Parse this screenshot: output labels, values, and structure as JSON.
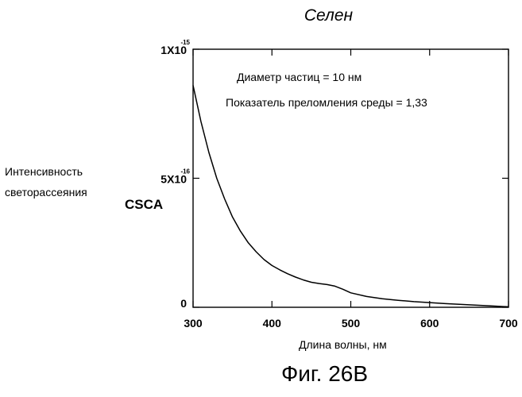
{
  "chart_data": {
    "type": "line",
    "title": "Селен",
    "xlabel": "Длина волны, нм",
    "ylabel_line1": "Интенсивность",
    "ylabel_line2": "светорассеяния",
    "ylabel_symbol": "CSCA",
    "xlim": [
      300,
      700
    ],
    "ylim": [
      0,
      1e-15
    ],
    "xticks": [
      "300",
      "400",
      "500",
      "600",
      "700"
    ],
    "yticks": [
      {
        "mantissa": "0",
        "exp": ""
      },
      {
        "mantissa": "5X10",
        "exp": "-16"
      },
      {
        "mantissa": "1X10",
        "exp": "-15"
      }
    ],
    "annotations": [
      "Диаметр частиц = 10 нм",
      "Показатель преломления среды = 1,33"
    ],
    "grid": false,
    "series": [
      {
        "x": [
          300,
          310,
          320,
          330,
          340,
          350,
          360,
          370,
          380,
          390,
          400,
          410,
          420,
          430,
          440,
          450,
          460,
          470,
          480,
          490,
          500,
          520,
          540,
          560,
          580,
          600,
          620,
          640,
          660,
          680,
          700
        ],
        "values": [
          8.6e-16,
          7.2e-16,
          6e-16,
          5e-16,
          4.2e-16,
          3.5e-16,
          2.95e-16,
          2.5e-16,
          2.15e-16,
          1.85e-16,
          1.62e-16,
          1.45e-16,
          1.3e-16,
          1.17e-16,
          1.06e-16,
          9.7e-17,
          9.2e-17,
          8.8e-17,
          8.2e-17,
          7e-17,
          5.6e-17,
          4.2e-17,
          3.3e-17,
          2.7e-17,
          2.2e-17,
          1.8e-17,
          1.4e-17,
          1.1e-17,
          8e-18,
          5e-18,
          2e-18
        ]
      }
    ]
  },
  "figure_caption": "Фиг. 26B"
}
